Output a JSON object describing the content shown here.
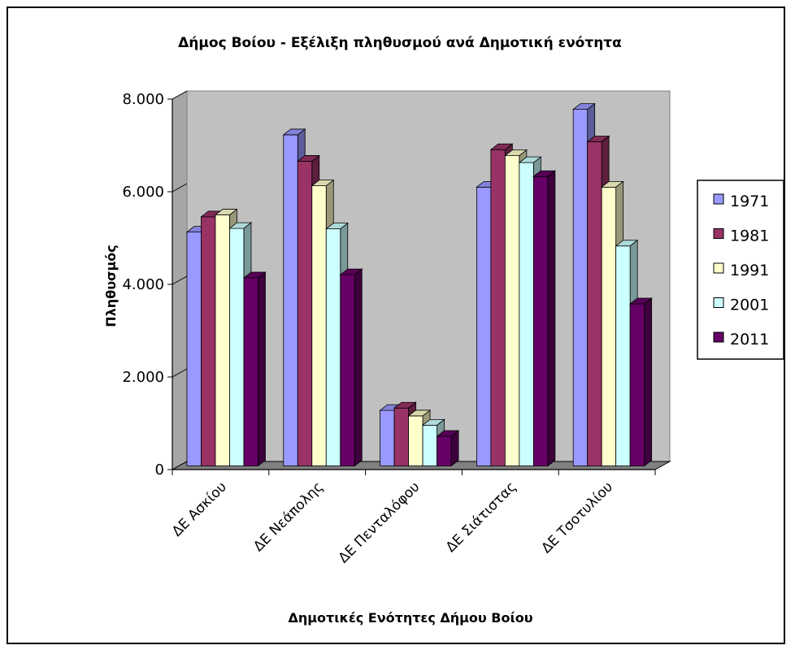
{
  "chart_data": {
    "type": "bar",
    "title": "Δήμος Βοίου - Εξέλιξη πληθυσμού ανά Δημοτική ενότητα",
    "xlabel": "Δημοτικές Ενότητες Δήμου Βοίου",
    "ylabel": "Πληθυσμός",
    "categories": [
      "ΔΕ Ασκίου",
      "ΔΕ Νεάπολης",
      "ΔΕ Πενταλόφου",
      "ΔΕ Σιάτιστας",
      "ΔΕ Τσοτυλίου"
    ],
    "ylim": [
      0,
      8000
    ],
    "yticks": [
      {
        "value": 0,
        "label": "0"
      },
      {
        "value": 2000,
        "label": "2.000"
      },
      {
        "value": 4000,
        "label": "4.000"
      },
      {
        "value": 6000,
        "label": "6.000"
      },
      {
        "value": 8000,
        "label": "8.000"
      }
    ],
    "legend_position": "right",
    "grid": false,
    "background_color": "#c0c0c0",
    "series": [
      {
        "name": "1971",
        "color": "#9999ff",
        "values": [
          5050,
          7150,
          1200,
          6020,
          7700
        ]
      },
      {
        "name": "1981",
        "color": "#993366",
        "values": [
          5380,
          6580,
          1250,
          6830,
          7000
        ]
      },
      {
        "name": "1991",
        "color": "#ffffcc",
        "values": [
          5420,
          6050,
          1080,
          6700,
          6020
        ]
      },
      {
        "name": "2001",
        "color": "#ccffff",
        "values": [
          5130,
          5120,
          880,
          6550,
          4750
        ]
      },
      {
        "name": "2011",
        "color": "#660066",
        "values": [
          4060,
          4130,
          640,
          6250,
          3500
        ]
      }
    ]
  }
}
